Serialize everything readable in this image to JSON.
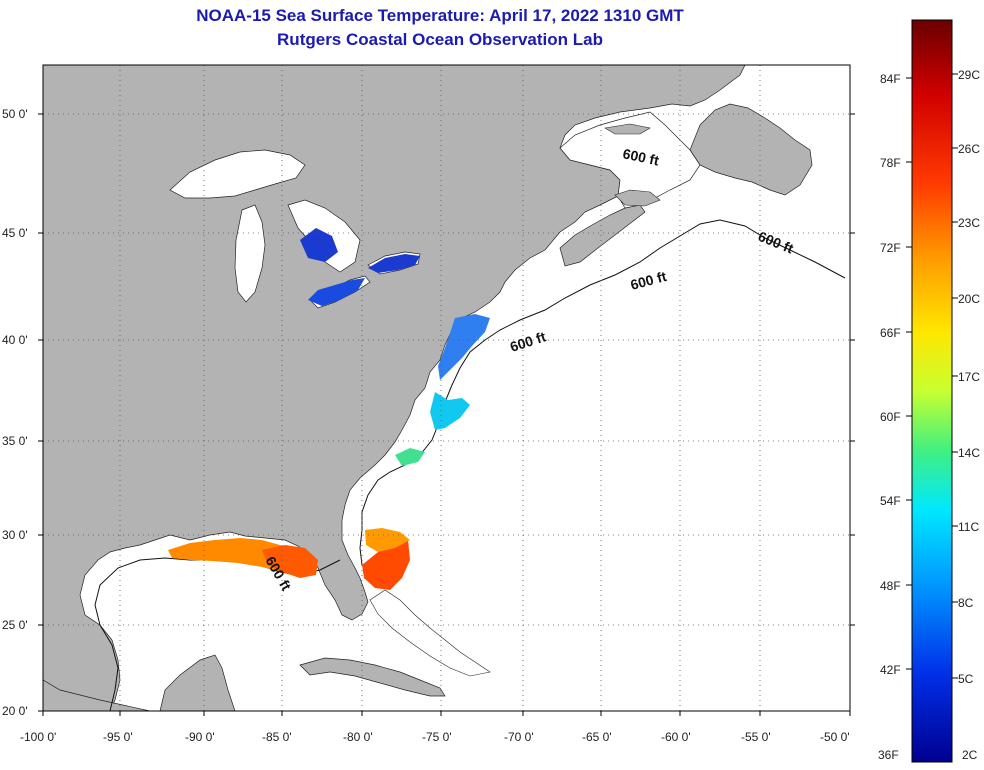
{
  "title": {
    "line1": "NOAA-15 Sea Surface Temperature:  April 17, 2022 1310 GMT",
    "line2": "Rutgers Coastal Ocean Observation Lab"
  },
  "map": {
    "lat_ticks": [
      "50 0'",
      "45 0'",
      "40 0'",
      "35 0'",
      "30 0'",
      "25 0'",
      "20 0'"
    ],
    "lon_ticks": [
      "-100 0'",
      "-95 0'",
      "-90 0'",
      "-85 0'",
      "-80 0'",
      "-75 0'",
      "-70 0'",
      "-65 0'",
      "-60 0'",
      "-55 0'",
      "-50 0'"
    ],
    "isobath_label": "600 ft",
    "land_color": "#b3b3b3",
    "water_color": "#ffffff"
  },
  "colorbar": {
    "f_labels": [
      "84F",
      "78F",
      "72F",
      "66F",
      "60F",
      "54F",
      "48F",
      "42F",
      "36F"
    ],
    "c_labels": [
      "29C",
      "26C",
      "23C",
      "20C",
      "17C",
      "14C",
      "11C",
      "8C",
      "5C",
      "2C"
    ],
    "colors": [
      "#7a0000",
      "#d40000",
      "#ff4000",
      "#ff9a00",
      "#ffe000",
      "#b0ff40",
      "#30e8a0",
      "#00d0ff",
      "#0080ff",
      "#0030e0",
      "#00009a"
    ]
  }
}
